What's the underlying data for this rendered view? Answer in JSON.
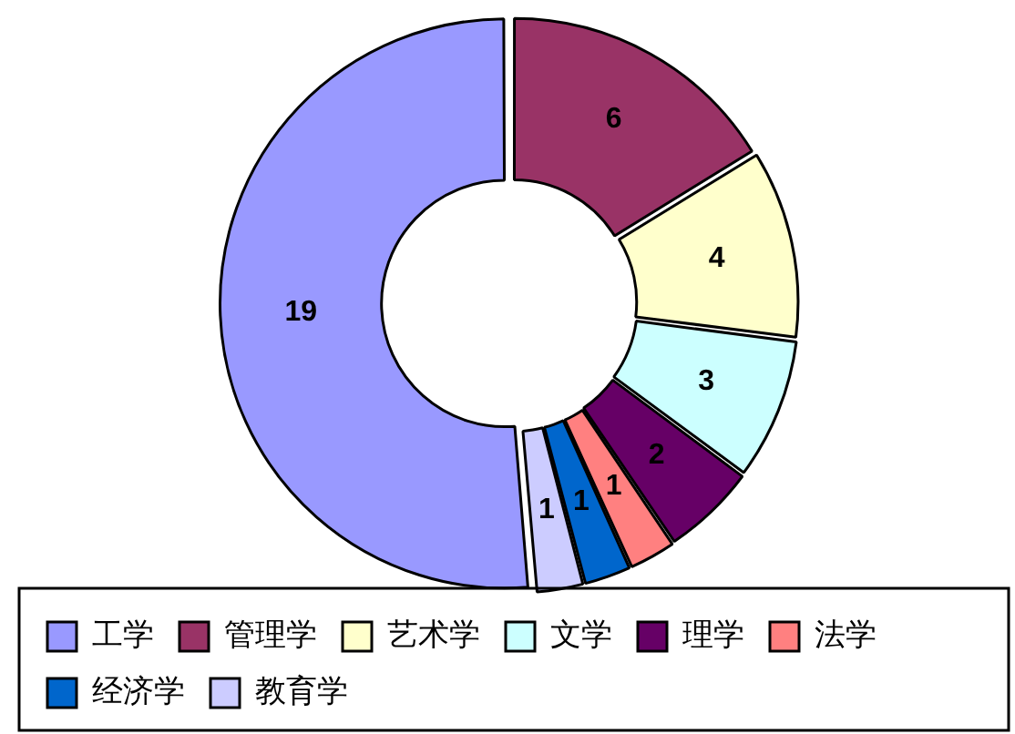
{
  "chart_data": {
    "type": "donut",
    "categories": [
      "工学",
      "管理学",
      "艺术学",
      "文学",
      "理学",
      "法学",
      "经济学",
      "教育学"
    ],
    "values": [
      19,
      6,
      4,
      3,
      2,
      1,
      1,
      1
    ],
    "colors": [
      "#9999ff",
      "#993366",
      "#ffffcc",
      "#ccffff",
      "#660066",
      "#ff8080",
      "#0066cc",
      "#ccccff"
    ],
    "data_labels": true,
    "legend": "bottom"
  }
}
